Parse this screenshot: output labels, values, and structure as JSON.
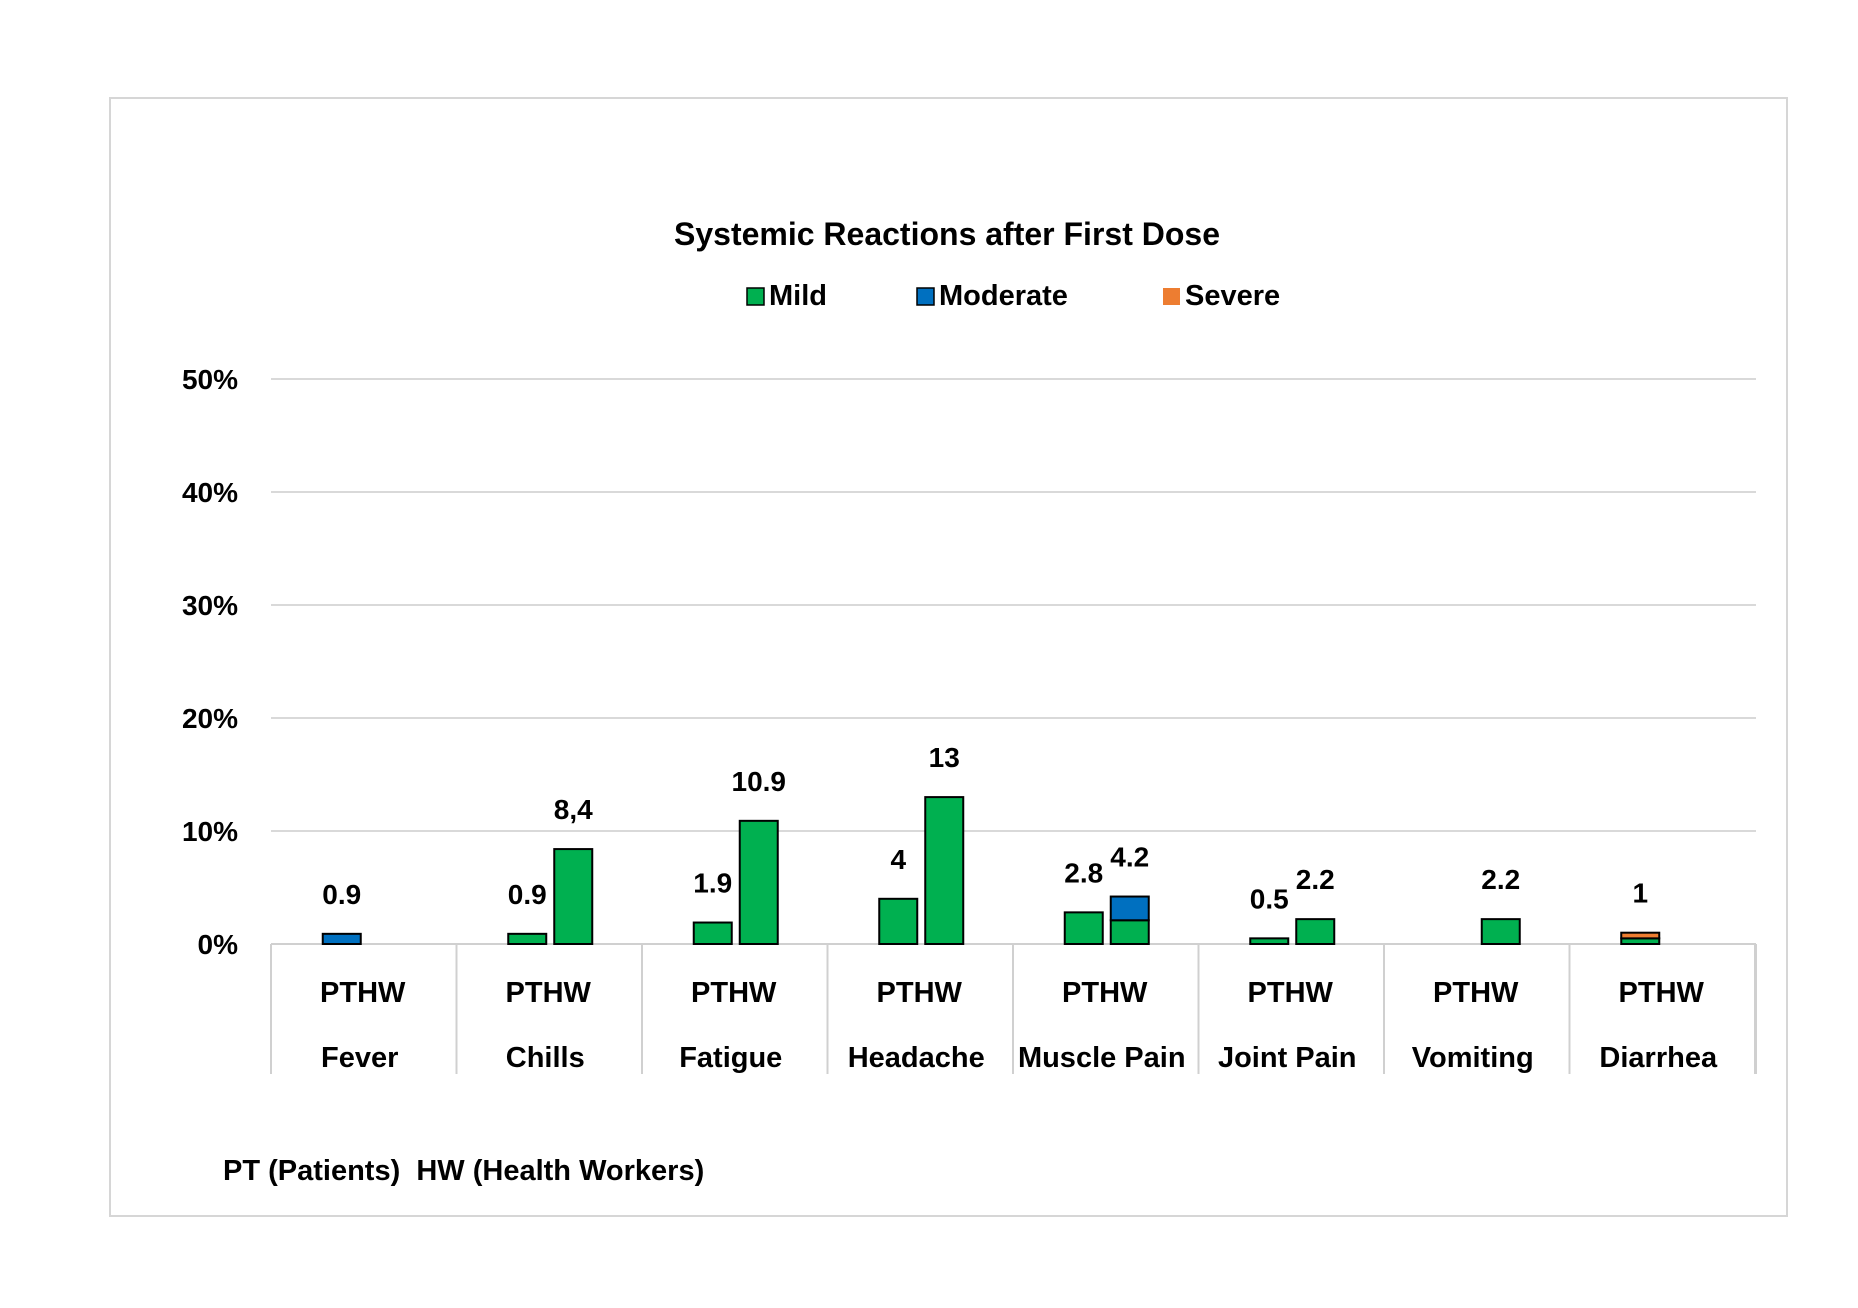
{
  "chart_data": {
    "type": "bar",
    "title": "Systemic Reactions after First Dose",
    "legend": {
      "position": "top",
      "entries": [
        {
          "name": "Mild",
          "color": "#00b050"
        },
        {
          "name": "Moderate",
          "color": "#0070c0"
        },
        {
          "name": "Severe",
          "color": "#ed7d31"
        }
      ]
    },
    "y_axis": {
      "ticks": [
        "0%",
        "10%",
        "20%",
        "30%",
        "40%",
        "50%"
      ],
      "ylim": [
        0,
        50
      ],
      "grid": true
    },
    "sub_labels": [
      "PT",
      "HW"
    ],
    "categories": [
      "Fever",
      "Chills",
      "Fatigue",
      "Headache",
      "Muscle Pain",
      "Joint Pain",
      "Vomiting",
      "Diarrhea"
    ],
    "groups": [
      {
        "category": "Fever",
        "bars": [
          {
            "sub": "PT",
            "segments": [
              {
                "series": "Moderate",
                "value": 0.9
              }
            ],
            "label": "0.9"
          },
          {
            "sub": "HW",
            "segments": [],
            "label": ""
          }
        ]
      },
      {
        "category": "Chills",
        "bars": [
          {
            "sub": "PT",
            "segments": [
              {
                "series": "Mild",
                "value": 0.9
              }
            ],
            "label": "0.9"
          },
          {
            "sub": "HW",
            "segments": [
              {
                "series": "Mild",
                "value": 8.4
              }
            ],
            "label": "8,4"
          }
        ]
      },
      {
        "category": "Fatigue",
        "bars": [
          {
            "sub": "PT",
            "segments": [
              {
                "series": "Mild",
                "value": 1.9
              }
            ],
            "label": "1.9"
          },
          {
            "sub": "HW",
            "segments": [
              {
                "series": "Mild",
                "value": 10.9
              }
            ],
            "label": "10.9"
          }
        ]
      },
      {
        "category": "Headache",
        "bars": [
          {
            "sub": "PT",
            "segments": [
              {
                "series": "Mild",
                "value": 4
              }
            ],
            "label": "4"
          },
          {
            "sub": "HW",
            "segments": [
              {
                "series": "Mild",
                "value": 13
              }
            ],
            "label": "13"
          }
        ]
      },
      {
        "category": "Muscle Pain",
        "bars": [
          {
            "sub": "PT",
            "segments": [
              {
                "series": "Mild",
                "value": 2.8
              }
            ],
            "label": "2.8"
          },
          {
            "sub": "HW",
            "segments": [
              {
                "series": "Mild",
                "value": 2.1
              },
              {
                "series": "Moderate",
                "value": 2.1
              }
            ],
            "label": "4.2"
          }
        ]
      },
      {
        "category": "Joint Pain",
        "bars": [
          {
            "sub": "PT",
            "segments": [
              {
                "series": "Mild",
                "value": 0.5
              }
            ],
            "label": "0.5"
          },
          {
            "sub": "HW",
            "segments": [
              {
                "series": "Mild",
                "value": 2.2
              }
            ],
            "label": "2.2"
          }
        ]
      },
      {
        "category": "Vomiting",
        "bars": [
          {
            "sub": "PT",
            "segments": [],
            "label": ""
          },
          {
            "sub": "HW",
            "segments": [
              {
                "series": "Mild",
                "value": 2.2
              }
            ],
            "label": "2.2"
          }
        ]
      },
      {
        "category": "Diarrhea",
        "bars": [
          {
            "sub": "PT",
            "segments": [
              {
                "series": "Mild",
                "value": 0.5
              },
              {
                "series": "Severe",
                "value": 0.5
              }
            ],
            "label": "1"
          },
          {
            "sub": "HW",
            "segments": [],
            "label": ""
          }
        ]
      }
    ],
    "footnote": "PT (Patients)  HW (Health Workers)"
  }
}
